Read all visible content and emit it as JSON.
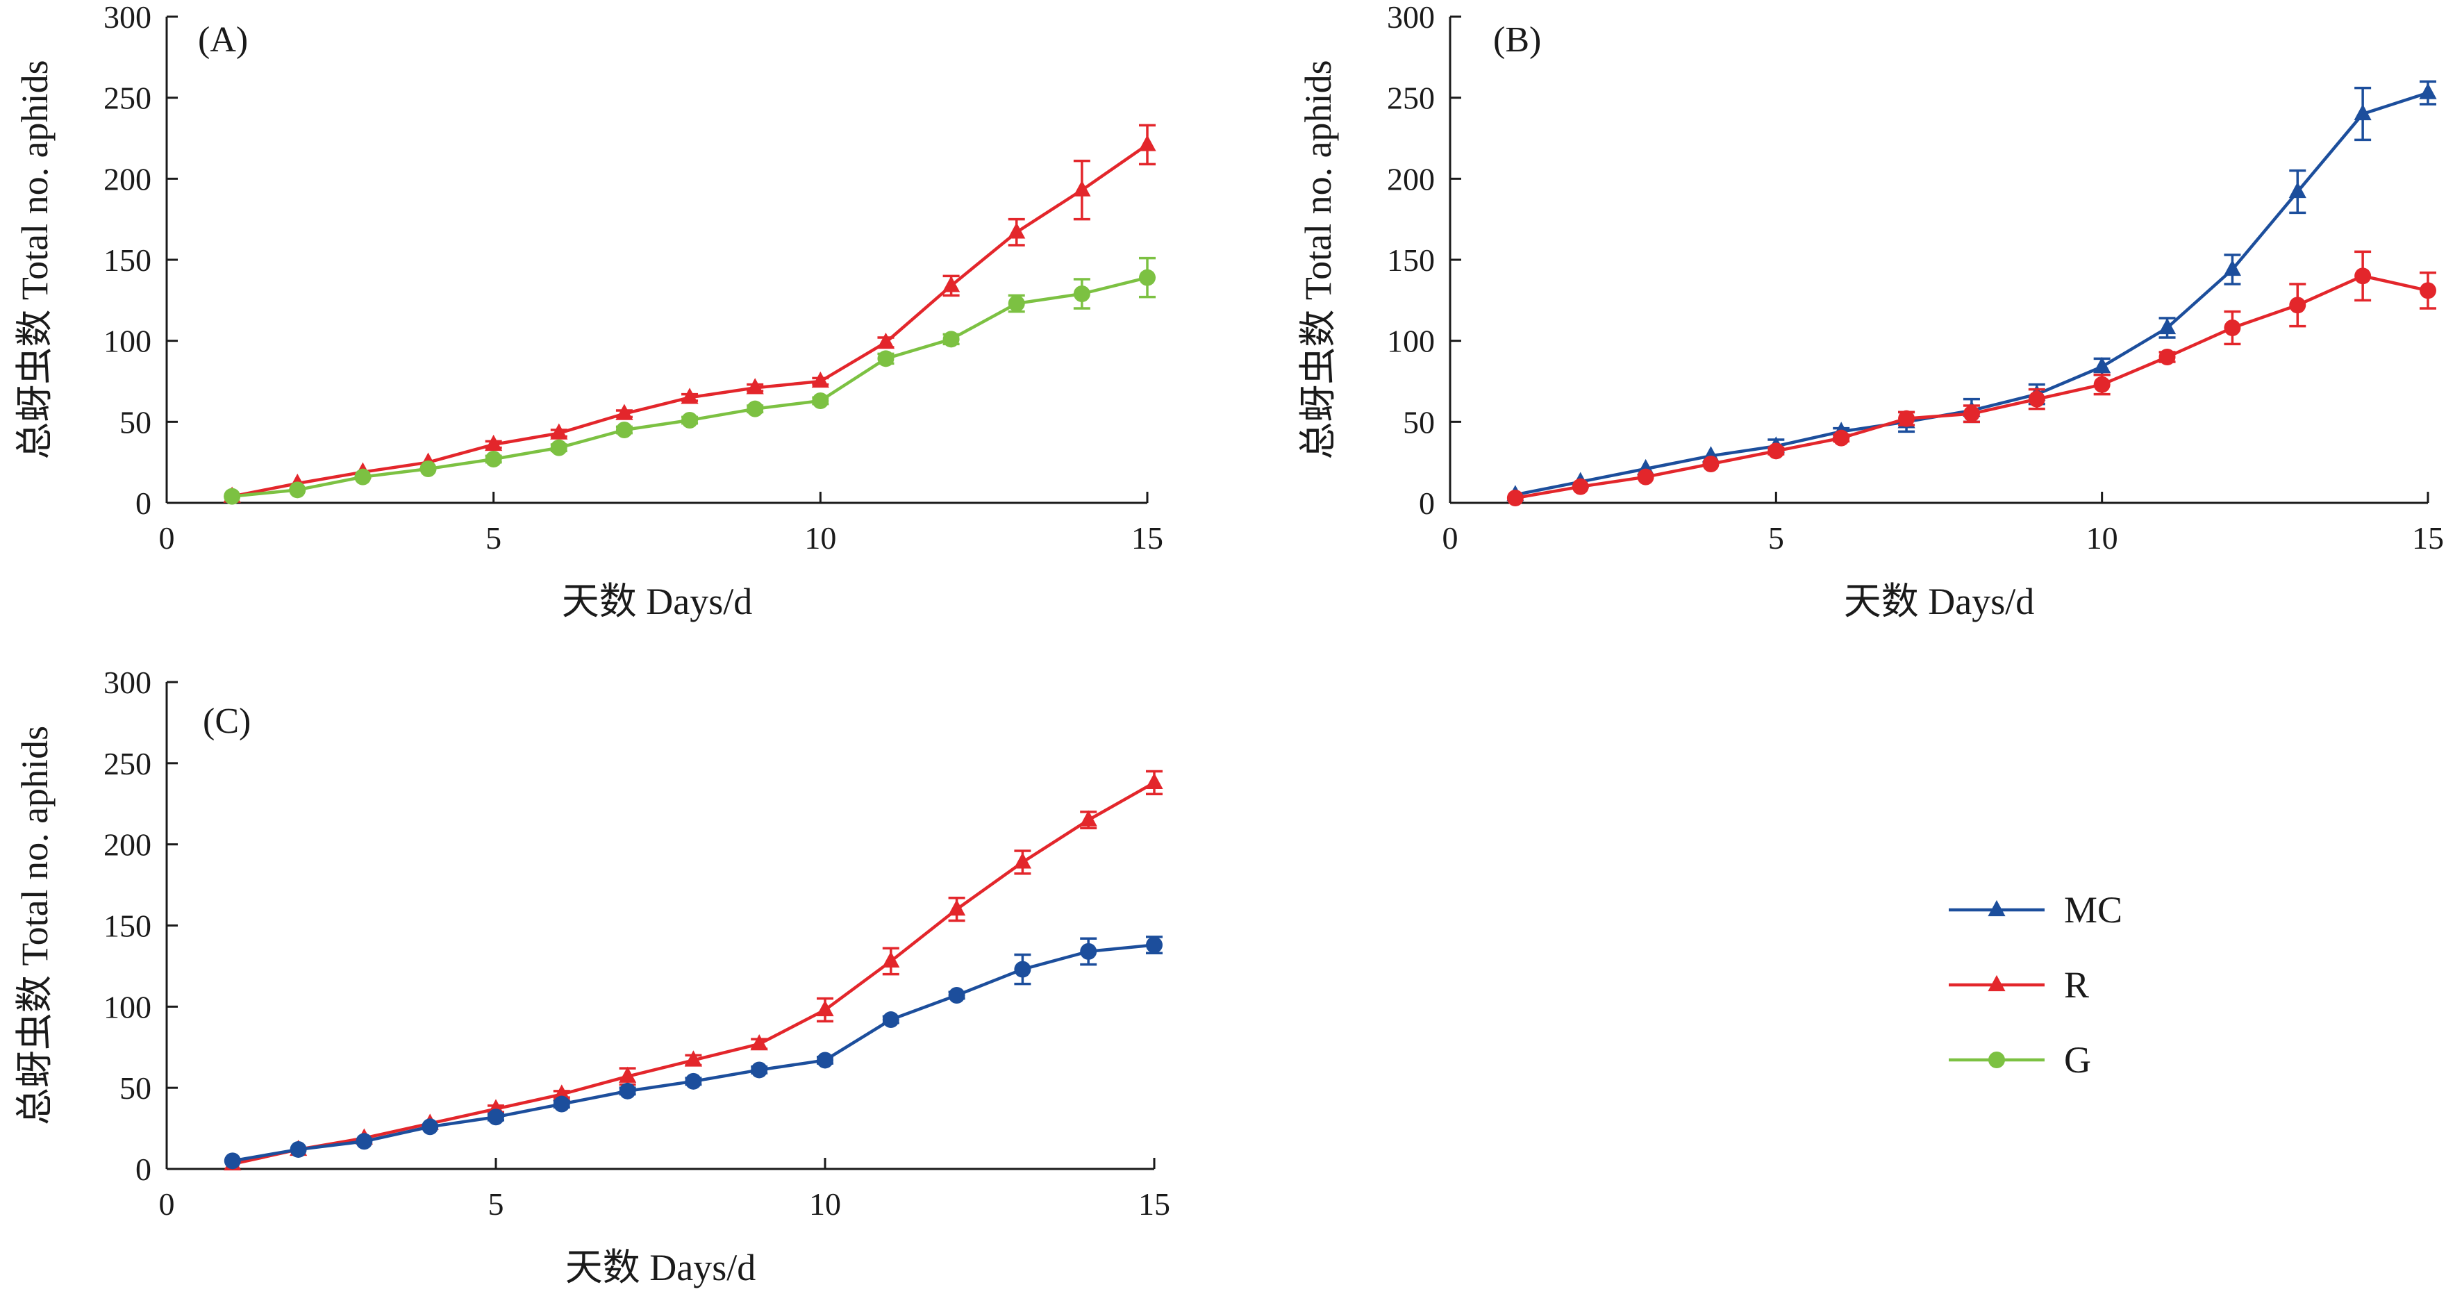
{
  "chart_data": [
    {
      "type": "line",
      "title": "(A)",
      "xlabel": "天数 Days/d",
      "ylabel": "总蚜虫数 Total no. aphids",
      "xlim": [
        0,
        15
      ],
      "ylim": [
        0,
        300
      ],
      "xticks": [
        0,
        5,
        10,
        15
      ],
      "yticks": [
        0,
        50,
        100,
        150,
        200,
        250,
        300
      ],
      "x": [
        1,
        2,
        3,
        4,
        5,
        6,
        7,
        8,
        9,
        10,
        11,
        12,
        13,
        14,
        15
      ],
      "series": [
        {
          "name": "R",
          "color": "#e3262b",
          "marker": "triangle",
          "values": [
            4,
            12,
            19,
            25,
            36,
            43,
            55,
            65,
            71,
            75,
            99,
            134,
            167,
            193,
            221
          ],
          "errors": [
            1,
            1,
            1,
            1,
            2,
            2,
            2,
            2,
            2,
            2,
            3,
            6,
            8,
            18,
            12
          ]
        },
        {
          "name": "G",
          "color": "#7cc142",
          "marker": "circle",
          "values": [
            4,
            8,
            16,
            21,
            27,
            34,
            45,
            51,
            58,
            63,
            89,
            101,
            123,
            129,
            139
          ],
          "errors": [
            1,
            1,
            1,
            1,
            2,
            2,
            2,
            2,
            2,
            2,
            3,
            3,
            5,
            9,
            12
          ]
        }
      ]
    },
    {
      "type": "line",
      "title": "(B)",
      "xlabel": "天数 Days/d",
      "ylabel": "总蚜虫数 Total no. aphids",
      "xlim": [
        0,
        15
      ],
      "ylim": [
        0,
        300
      ],
      "xticks": [
        0,
        5,
        10,
        15
      ],
      "yticks": [
        0,
        50,
        100,
        150,
        200,
        250,
        300
      ],
      "x": [
        1,
        2,
        3,
        4,
        5,
        6,
        7,
        8,
        9,
        10,
        11,
        12,
        13,
        14,
        15
      ],
      "series": [
        {
          "name": "MC",
          "color": "#1c4e9c",
          "marker": "triangle",
          "values": [
            5,
            13,
            21,
            29,
            35,
            44,
            50,
            57,
            67,
            84,
            108,
            144,
            192,
            240,
            253
          ],
          "errors": [
            1,
            1,
            1,
            1,
            4,
            2,
            6,
            7,
            6,
            5,
            6,
            9,
            13,
            16,
            7
          ]
        },
        {
          "name": "R",
          "color": "#e3262b",
          "marker": "circle",
          "values": [
            3,
            10,
            16,
            24,
            32,
            40,
            52,
            55,
            64,
            73,
            90,
            108,
            122,
            140,
            131
          ],
          "errors": [
            1,
            1,
            1,
            1,
            2,
            2,
            4,
            5,
            6,
            6,
            3,
            10,
            13,
            15,
            11
          ]
        }
      ]
    },
    {
      "type": "line",
      "title": "(C)",
      "xlabel": "天数 Days/d",
      "ylabel": "总蚜虫数 Total no. aphids",
      "xlim": [
        0,
        15
      ],
      "ylim": [
        0,
        300
      ],
      "xticks": [
        0,
        5,
        10,
        15
      ],
      "yticks": [
        0,
        50,
        100,
        150,
        200,
        250,
        300
      ],
      "x": [
        1,
        2,
        3,
        4,
        5,
        6,
        7,
        8,
        9,
        10,
        11,
        12,
        13,
        14,
        15
      ],
      "series": [
        {
          "name": "R",
          "color": "#e3262b",
          "marker": "triangle",
          "values": [
            3,
            12,
            19,
            28,
            37,
            46,
            57,
            67,
            77,
            98,
            128,
            160,
            189,
            215,
            238
          ],
          "errors": [
            1,
            1,
            1,
            1,
            2,
            2,
            5,
            3,
            3,
            7,
            8,
            7,
            7,
            5,
            7
          ]
        },
        {
          "name": "MC",
          "color": "#1c4e9c",
          "marker": "circle",
          "values": [
            5,
            12,
            17,
            26,
            32,
            40,
            48,
            54,
            61,
            67,
            92,
            107,
            123,
            134,
            138
          ],
          "errors": [
            1,
            1,
            1,
            1,
            2,
            2,
            2,
            2,
            2,
            2,
            2,
            2,
            9,
            8,
            5
          ]
        }
      ]
    }
  ],
  "legend": {
    "items": [
      {
        "label": "MC",
        "color": "#1c4e9c",
        "marker": "triangle"
      },
      {
        "label": "R",
        "color": "#e3262b",
        "marker": "triangle"
      },
      {
        "label": "G",
        "color": "#7cc142",
        "marker": "circle"
      }
    ]
  }
}
